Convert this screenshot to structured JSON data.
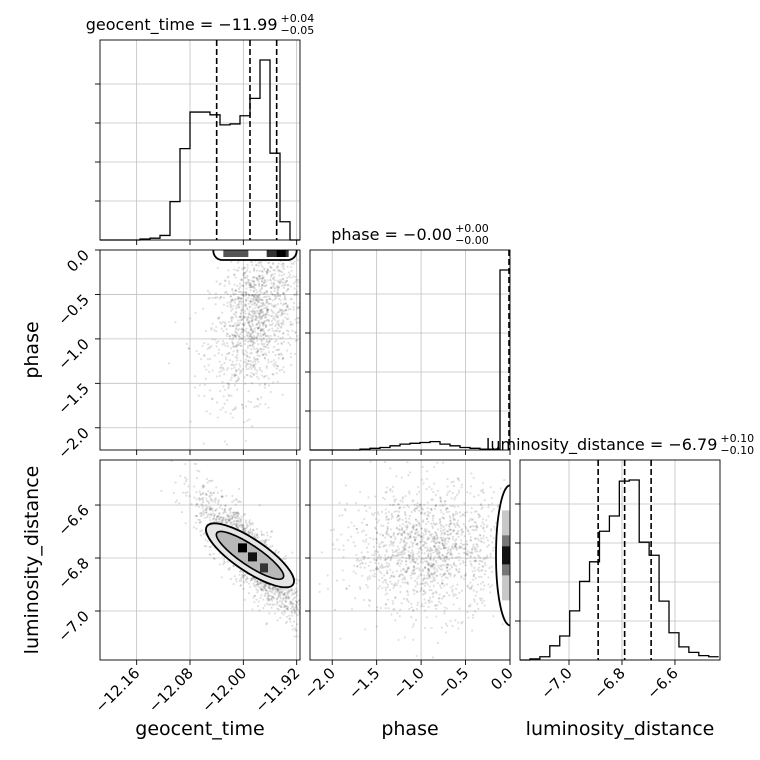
{
  "chart_data": {
    "type": "corner",
    "parameters": [
      "geocent_time",
      "phase",
      "luminosity_distance"
    ],
    "grid": true,
    "quantile_line_style": "dashed",
    "titles": [
      {
        "param": "geocent_time",
        "prefix": "geocent_time = −11.99",
        "sup": "+0.04",
        "sub": "−0.05"
      },
      {
        "param": "phase",
        "prefix": "phase = −0.00",
        "sup": "+0.00",
        "sub": "−0.00"
      },
      {
        "param": "luminosity_distance",
        "prefix": "luminosity_distance = −6.79",
        "sup": "+0.10",
        "sub": "−0.10"
      }
    ],
    "axis_labels": {
      "x": [
        "geocent_time",
        "phase",
        "luminosity_distance"
      ],
      "y": [
        "phase",
        "luminosity_distance"
      ]
    },
    "ranges": {
      "geocent_time": [
        -12.215,
        -11.915
      ],
      "phase": [
        -2.25,
        0.0
      ],
      "luminosity_distance": [
        -7.185,
        -6.43
      ]
    },
    "ticks": {
      "geocent_time": {
        "values": [
          -12.16,
          -12.08,
          -12.0,
          -11.92
        ],
        "labels": [
          "−12.16",
          "−12.08",
          "−12.00",
          "−11.92"
        ]
      },
      "phase": {
        "values": [
          -2.0,
          -1.5,
          -1.0,
          -0.5,
          0.0
        ],
        "labels": [
          "−2.0",
          "−1.5",
          "−1.0",
          "−0.5",
          "0.0"
        ]
      },
      "luminosity_distance": {
        "values": [
          -7.0,
          -6.8,
          -6.6
        ],
        "labels": [
          "−7.0",
          "−6.8",
          "−6.6"
        ]
      }
    },
    "histograms": {
      "geocent_time": {
        "bin_edges": [
          -12.215,
          -12.2,
          -12.185,
          -12.17,
          -12.155,
          -12.14,
          -12.125,
          -12.11,
          -12.095,
          -12.08,
          -12.065,
          -12.05,
          -12.035,
          -12.02,
          -12.005,
          -11.99,
          -11.975,
          -11.96,
          -11.945,
          -11.93,
          -11.915
        ],
        "counts": [
          0,
          0,
          0,
          0,
          1,
          2,
          5,
          42,
          100,
          140,
          140,
          137,
          126,
          127,
          136,
          155,
          197,
          95,
          20,
          0
        ],
        "quantiles": [
          -12.04,
          -11.99,
          -11.95
        ]
      },
      "phase": {
        "bin_edges": [
          -2.25,
          -2.1375,
          -2.025,
          -1.9125,
          -1.8,
          -1.6875,
          -1.575,
          -1.4625,
          -1.35,
          -1.2375,
          -1.125,
          -1.0125,
          -0.9,
          -0.7875,
          -0.675,
          -0.5625,
          -0.45,
          -0.3375,
          -0.225,
          -0.1125,
          0.0
        ],
        "counts": [
          0,
          0,
          0,
          0,
          0,
          1,
          2,
          3,
          5,
          7,
          8,
          9,
          10,
          7,
          5,
          3,
          2,
          1,
          1,
          215
        ],
        "quantiles": [
          -0.0
        ]
      },
      "luminosity_distance": {
        "bin_edges": [
          -7.185,
          -7.1475,
          -7.11,
          -7.0725,
          -7.035,
          -6.9975,
          -6.96,
          -6.9225,
          -6.885,
          -6.8475,
          -6.81,
          -6.7725,
          -6.735,
          -6.6975,
          -6.66,
          -6.6225,
          -6.585,
          -6.5475,
          -6.51,
          -6.4725,
          -6.435
        ],
        "counts": [
          0,
          1,
          3,
          13,
          22,
          45,
          72,
          90,
          118,
          132,
          164,
          165,
          108,
          96,
          54,
          25,
          12,
          7,
          4,
          3
        ],
        "quantiles": [
          -6.89,
          -6.79,
          -6.69
        ]
      }
    },
    "scatter_centers": {
      "geocent_time_vs_phase": [
        -11.98,
        -0.75
      ],
      "geocent_time_vs_luminosity_distance": [
        -11.99,
        -6.79
      ],
      "phase_vs_luminosity_distance": [
        -0.9,
        -6.77
      ]
    }
  }
}
